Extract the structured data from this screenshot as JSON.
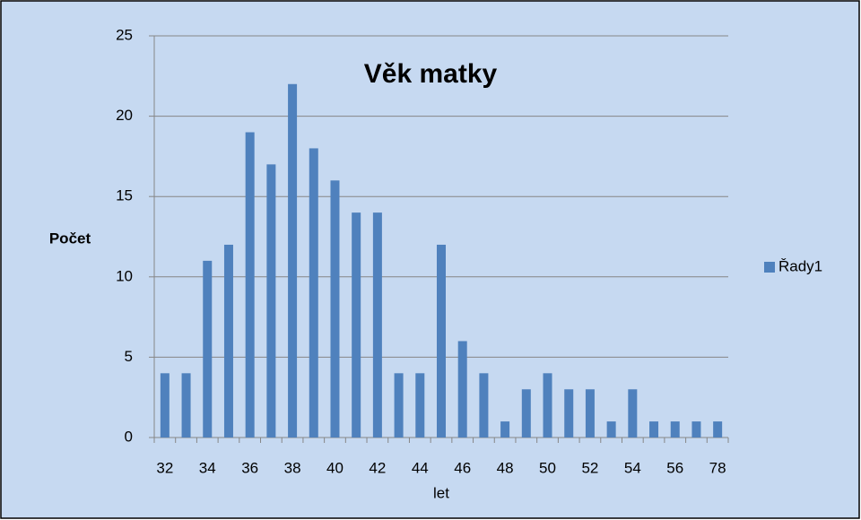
{
  "chart_data": {
    "type": "bar",
    "title": "Věk matky",
    "y_label": "Počet",
    "x_label": "let",
    "categories": [
      32,
      null,
      34,
      null,
      36,
      null,
      38,
      null,
      40,
      null,
      42,
      null,
      44,
      null,
      46,
      null,
      48,
      null,
      50,
      null,
      52,
      null,
      54,
      null,
      56,
      null,
      78
    ],
    "series": [
      {
        "name": "Řady1",
        "color": "#4f81bd",
        "values": [
          4,
          4,
          11,
          12,
          19,
          17,
          22,
          18,
          16,
          14,
          14,
          4,
          4,
          12,
          6,
          4,
          1,
          3,
          4,
          3,
          3,
          1,
          3,
          1,
          1,
          1,
          1
        ]
      }
    ],
    "ylim": [
      0,
      25
    ],
    "yticks": [
      0,
      5,
      10,
      15,
      20,
      25
    ],
    "grid": true,
    "legend": "right"
  }
}
